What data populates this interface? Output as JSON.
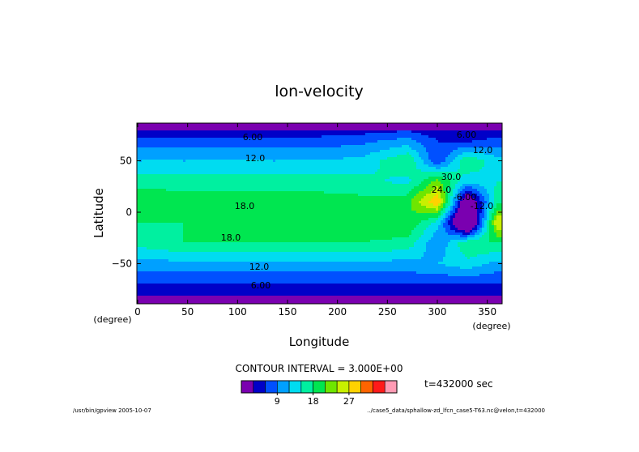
{
  "chart_data": {
    "type": "heatmap",
    "title": "lon-velocity",
    "xlabel": "Longitude",
    "ylabel": "Latitude",
    "x_unit": "(degree)",
    "y_unit": "(degree)",
    "xlim": [
      0,
      360
    ],
    "ylim": [
      -90,
      90
    ],
    "x_ticks": [
      "0",
      "50",
      "100",
      "150",
      "200",
      "250",
      "300",
      "350"
    ],
    "y_ticks": [
      "50",
      "0",
      "−50"
    ],
    "contour_labels": [
      "6.00",
      "12.0",
      "18.0",
      "18.0",
      "12.0",
      "6.00",
      "6.00",
      "12.0",
      "24.0",
      "30.0",
      "-6.00",
      "-12.0"
    ],
    "contour_interval_text": "CONTOUR INTERVAL = 3.000E+00",
    "time_text": "t=432000 sec",
    "colorbar": {
      "tick_labels": [
        "9",
        "18",
        "27"
      ],
      "colors": [
        "#7a00b0",
        "#0000c8",
        "#0050ff",
        "#00a0ff",
        "#00dcf0",
        "#00f0a0",
        "#00e650",
        "#6ee600",
        "#c8f000",
        "#ffd200",
        "#ff6400",
        "#ff1a1a",
        "#ff9bb4"
      ]
    },
    "approx_grid_lat": [
      90,
      70,
      50,
      30,
      10,
      -10,
      -30,
      -50,
      -70,
      -90
    ],
    "approx_grid_lon": [
      0,
      45,
      90,
      135,
      180,
      225,
      270,
      300,
      330,
      360
    ],
    "approx_values": [
      [
        1,
        1,
        1,
        1,
        1,
        1,
        1,
        1,
        1,
        1
      ],
      [
        7,
        7,
        7,
        7,
        7,
        8,
        10,
        6,
        5,
        7
      ],
      [
        12,
        12,
        12,
        12,
        12,
        13,
        18,
        6,
        18,
        13
      ],
      [
        17,
        17,
        17,
        17,
        17,
        16,
        14,
        22,
        13,
        15
      ],
      [
        20,
        19,
        19,
        19,
        19,
        19,
        20,
        30,
        -4,
        17
      ],
      [
        18,
        18,
        19,
        19,
        19,
        19,
        21,
        14,
        -10,
        27
      ],
      [
        16,
        18,
        18,
        18,
        18,
        18,
        17,
        9,
        18,
        18
      ],
      [
        11,
        11,
        11,
        11,
        11,
        11,
        11,
        12,
        14,
        11
      ],
      [
        6,
        6,
        6,
        6,
        6,
        6,
        6,
        6,
        6,
        6
      ],
      [
        1,
        1,
        1,
        1,
        1,
        1,
        1,
        1,
        1,
        1
      ]
    ]
  },
  "footer": {
    "left": "/usr/bin/gpview  2005-10-07",
    "right": "../case5_data/sphallow-zd_lfcn_case5-T63.nc@velon,t=432000"
  }
}
